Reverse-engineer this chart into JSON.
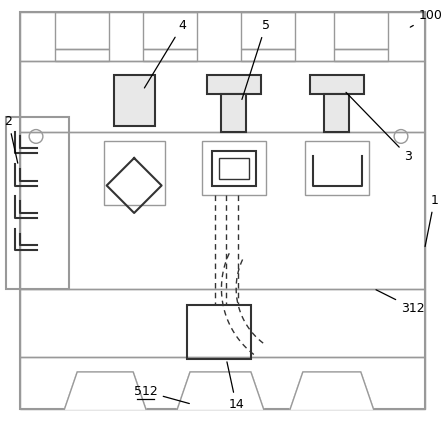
{
  "background_color": "#ffffff",
  "lc": "#999999",
  "dc": "#333333",
  "figsize": [
    4.43,
    4.23
  ],
  "dpi": 100
}
